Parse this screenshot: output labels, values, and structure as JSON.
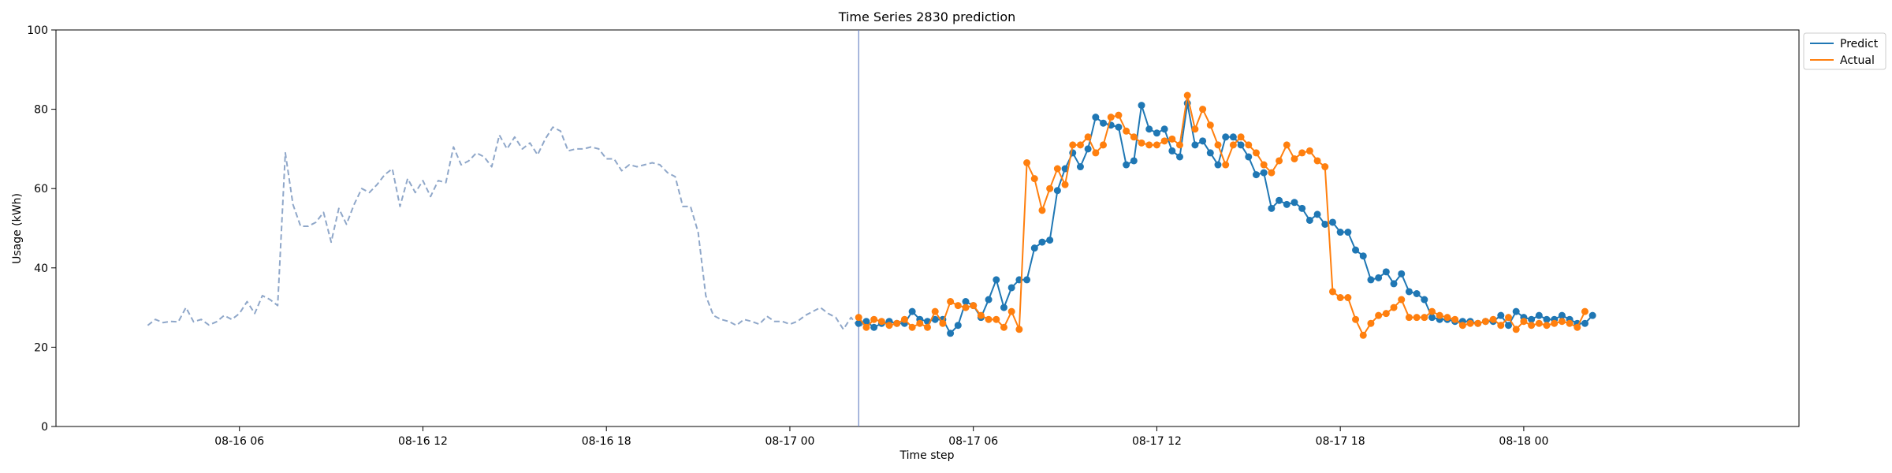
{
  "chart_data": {
    "type": "line",
    "title": "Time Series 2830 prediction",
    "xlabel": "Time step",
    "ylabel": "Usage (kWh)",
    "ylim": [
      0,
      100
    ],
    "yticks": [
      0,
      20,
      40,
      60,
      80,
      100
    ],
    "x_axis": {
      "start": "08-16 00:00",
      "end": "08-18 09:00",
      "ticks": [
        {
          "label": "08-16 06",
          "value": "08-16 06:00"
        },
        {
          "label": "08-16 12",
          "value": "08-16 12:00"
        },
        {
          "label": "08-16 18",
          "value": "08-16 18:00"
        },
        {
          "label": "08-17 00",
          "value": "08-17 00:00"
        },
        {
          "label": "08-17 06",
          "value": "08-17 06:00"
        },
        {
          "label": "08-17 12",
          "value": "08-17 12:00"
        },
        {
          "label": "08-17 18",
          "value": "08-17 18:00"
        },
        {
          "label": "08-18 00",
          "value": "08-18 00:00"
        }
      ]
    },
    "vline": "08-17 02:15",
    "legend": {
      "placement": "top-right, outside"
    },
    "series": [
      {
        "name": "",
        "style": "dashed",
        "color": "#8fa7c9",
        "start": "08-16 03:00",
        "step_minutes": 15,
        "values": [
          25.5,
          27,
          26.2,
          26.5,
          26.4,
          30,
          26.4,
          27,
          25.6,
          26.4,
          28,
          27,
          28.5,
          31.5,
          28.5,
          33,
          32,
          30.5,
          69,
          56,
          50.5,
          50.5,
          51.5,
          54,
          46.5,
          55,
          51,
          56,
          60,
          59,
          61,
          63.5,
          65,
          55.5,
          62.5,
          59,
          62,
          58,
          62,
          61.5,
          70.5,
          66,
          67,
          69,
          68,
          65.5,
          73.5,
          70,
          73,
          70,
          71.5,
          68.5,
          72.5,
          75.5,
          74.5,
          69.5,
          70,
          70,
          70.5,
          70,
          67.5,
          67.5,
          64.5,
          66,
          65.5,
          66,
          66.5,
          66,
          64,
          63,
          55.5,
          55.5,
          49,
          33,
          28,
          27,
          26.5,
          25.5,
          27,
          26.5,
          25.8,
          27.8,
          26.5,
          26.5,
          25.8,
          26.5,
          28,
          29,
          30,
          28.5,
          27.5,
          24.5,
          27.5,
          25,
          26.5
        ]
      },
      {
        "name": "Predict",
        "style": "solid-markers",
        "color": "#1f77b4",
        "start": "08-17 02:15",
        "step_minutes": 15,
        "values": [
          26,
          26.5,
          25,
          26,
          26.5,
          26,
          26,
          29,
          27,
          26.5,
          27,
          27,
          23.5,
          25.5,
          31.5,
          30.5,
          27.5,
          32,
          37,
          30,
          35,
          37,
          37,
          45,
          46.5,
          47,
          59.5,
          65,
          69,
          65.5,
          70,
          78,
          76.5,
          76,
          75.5,
          66,
          67,
          81,
          75,
          74,
          75,
          69.5,
          68,
          81.5,
          71,
          72,
          69,
          66,
          73,
          73,
          71,
          68,
          63.5,
          64,
          55,
          57,
          56,
          56.5,
          55,
          52,
          53.5,
          51,
          51.5,
          49,
          49,
          44.5,
          43,
          37,
          37.5,
          39,
          36,
          38.5,
          34,
          33.5,
          32,
          27.5,
          27,
          27,
          26.5,
          26.5,
          26.5,
          26,
          26.5,
          26.5,
          28,
          25.5,
          29,
          27.5,
          27,
          28,
          27,
          27,
          28,
          27,
          26,
          26,
          28
        ]
      },
      {
        "name": "Actual",
        "style": "solid-markers",
        "color": "#ff7f0e",
        "start": "08-17 02:15",
        "step_minutes": 15,
        "values": [
          27.5,
          25,
          27,
          26.5,
          25.5,
          26,
          27,
          25,
          26,
          25,
          29,
          26,
          31.5,
          30.5,
          30,
          30.5,
          28,
          27,
          27,
          25,
          29,
          24.5,
          66.5,
          62.5,
          54.5,
          60,
          65,
          61,
          71,
          71,
          73,
          69,
          71,
          78,
          78.5,
          74.5,
          73,
          71.5,
          71,
          71,
          72,
          72.5,
          71,
          83.5,
          75,
          80,
          76,
          71,
          66,
          71,
          73,
          71,
          69,
          66,
          64,
          67,
          71,
          67.5,
          69,
          69.5,
          67,
          65.5,
          34,
          32.5,
          32.5,
          27,
          23,
          26,
          28,
          28.5,
          30,
          32,
          27.5,
          27.5,
          27.5,
          29,
          28,
          27.5,
          27,
          25.5,
          26,
          26,
          26.5,
          27,
          25.5,
          27.5,
          24.5,
          26.5,
          25.5,
          26,
          25.5,
          26,
          26.5,
          26,
          25,
          29
        ]
      }
    ]
  }
}
